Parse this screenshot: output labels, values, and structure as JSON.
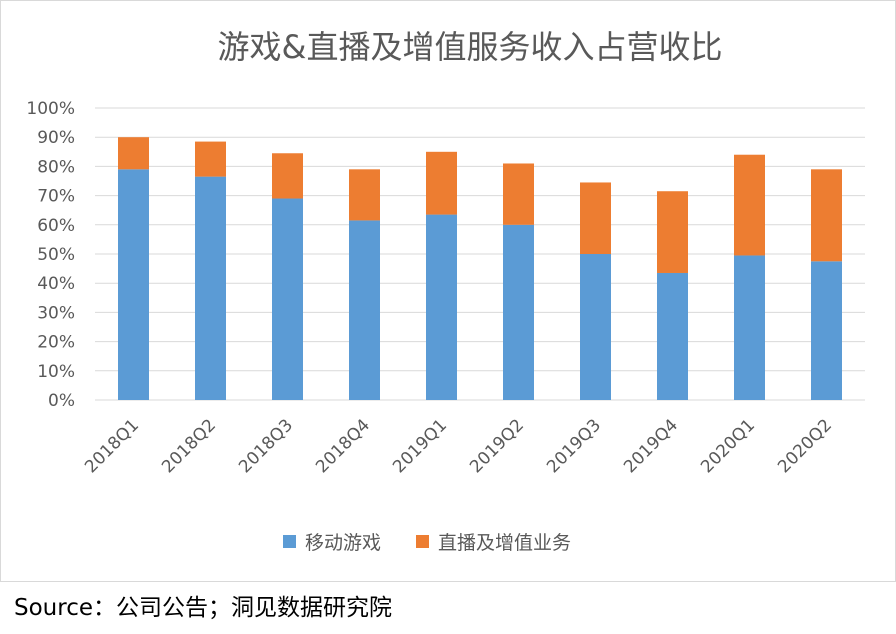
{
  "source": "Source：公司公告；洞见数据研究院",
  "colors": {
    "mobile": "#5b9bd5",
    "live": "#ed7d31",
    "grid": "#d9d9d9",
    "text": "#595959"
  },
  "chart_data": {
    "type": "bar",
    "stacked": true,
    "title": "游戏&直播及增值服务收入占营收比",
    "categories": [
      "2018Q1",
      "2018Q2",
      "2018Q3",
      "2018Q4",
      "2019Q1",
      "2019Q2",
      "2019Q3",
      "2019Q4",
      "2020Q1",
      "2020Q2"
    ],
    "series": [
      {
        "name": "移动游戏",
        "color": "#5b9bd5",
        "values": [
          79,
          76.5,
          69,
          61.5,
          63.5,
          60,
          50,
          43.5,
          49.5,
          47.5
        ]
      },
      {
        "name": "直播及增值业务",
        "color": "#ed7d31",
        "values": [
          11,
          12,
          15.5,
          17.5,
          21.5,
          21,
          24.5,
          28,
          34.5,
          31.5
        ]
      }
    ],
    "ylim": [
      0,
      100
    ],
    "yticks": [
      "0%",
      "10%",
      "20%",
      "30%",
      "40%",
      "50%",
      "60%",
      "70%",
      "80%",
      "90%",
      "100%"
    ],
    "grid": true,
    "legend_position": "bottom"
  }
}
